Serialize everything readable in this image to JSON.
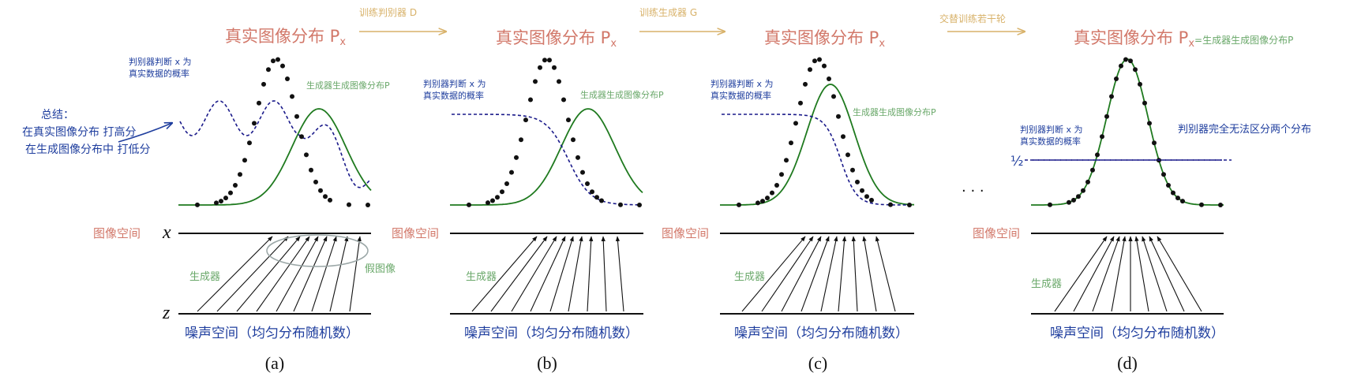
{
  "colors": {
    "real": "#111111",
    "generator": "#1f7a1f",
    "discriminator": "#1a1a8a",
    "title": "#d2786a",
    "green_label": "#6aa86a",
    "blue_label": "#1f3e9e",
    "step_arrow": "#d8b26a",
    "circle": "#9aa6a6"
  },
  "arrows": [
    {
      "label": "训练判别器 D"
    },
    {
      "label": "训练生成器 G"
    },
    {
      "label": "交替训练若干轮"
    }
  ],
  "panels": [
    {
      "letter": "(a)",
      "title": "真实图像分布 P",
      "title_sub": "x",
      "title_suffix": "",
      "gen_label": "生成器生成图像分布P",
      "disc_label": [
        "判别器判断 x 为",
        "真实数据的概率"
      ],
      "annotation": [
        "总结：",
        "在真实图像分布 打高分",
        "在生成图像分布中 打低分"
      ],
      "fake_label": "假图像",
      "image_space": "图像空间",
      "generator": "生成器",
      "noise_space": "噪声空间（均匀分布随机数）",
      "x_axis": "x",
      "z_axis": "z"
    },
    {
      "letter": "(b)",
      "title": "真实图像分布 P",
      "title_sub": "x",
      "title_suffix": "",
      "gen_label": "生成器生成图像分布P",
      "disc_label": [
        "判别器判断 x 为",
        "真实数据的概率"
      ],
      "image_space": "图像空间",
      "generator": "生成器",
      "noise_space": "噪声空间（均匀分布随机数）"
    },
    {
      "letter": "(c)",
      "title": "真实图像分布 P",
      "title_sub": "x",
      "title_suffix": "",
      "gen_label": "生成器生成图像分布P",
      "disc_label": [
        "判别器判断 x 为",
        "真实数据的概率"
      ],
      "image_space": "图像空间",
      "generator": "生成器",
      "noise_space": "噪声空间（均匀分布随机数）"
    },
    {
      "letter": "(d)",
      "title": "真实图像分布 P",
      "title_sub": "x",
      "title_suffix": "=生成器生成图像分布P",
      "disc_label": [
        "判别器判断 x 为",
        "真实数据的概率"
      ],
      "right_label": "判别器完全无法区分两个分布",
      "half_label": "½",
      "ellipsis": "· · ·",
      "image_space": "图像空间",
      "generator": "生成器",
      "noise_space": "噪声空间（均匀分布随机数）"
    }
  ]
}
